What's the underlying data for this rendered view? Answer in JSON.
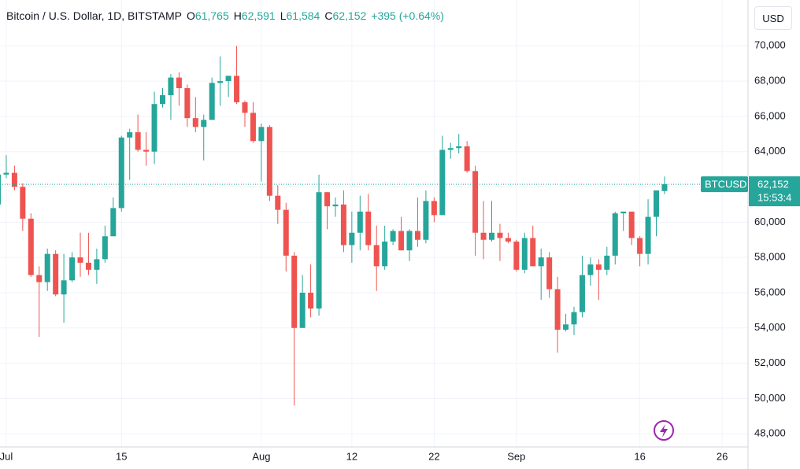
{
  "chart_data": {
    "type": "candlestick",
    "title": "Bitcoin / U.S. Dollar, 1D, BITSTAMP",
    "header": {
      "open_label": "O",
      "open": "61,765",
      "high_label": "H",
      "high": "62,591",
      "low_label": "L",
      "low": "61,584",
      "close_label": "C",
      "close": "62,152",
      "change": "+395 (+0.64%)"
    },
    "currency": "USD",
    "price_tag": {
      "symbol": "BTCUSD",
      "price": "62,152",
      "countdown": "15:53:4"
    },
    "up_color": "#26a69a",
    "down_color": "#ef5350",
    "grid": true,
    "x": [
      "Jun 30",
      "Jul 1",
      "Jul 2",
      "Jul 3",
      "Jul 4",
      "Jul 5",
      "Jul 6",
      "Jul 7",
      "Jul 8",
      "Jul 9",
      "Jul 10",
      "Jul 11",
      "Jul 12",
      "Jul 13",
      "Jul 14",
      "Jul 15",
      "Jul 16",
      "Jul 17",
      "Jul 18",
      "Jul 19",
      "Jul 20",
      "Jul 21",
      "Jul 22",
      "Jul 23",
      "Jul 24",
      "Jul 25",
      "Jul 26",
      "Jul 27",
      "Jul 28",
      "Jul 29",
      "Jul 30",
      "Jul 31",
      "Aug 1",
      "Aug 2",
      "Aug 3",
      "Aug 4",
      "Aug 5",
      "Aug 6",
      "Aug 7",
      "Aug 8",
      "Aug 9",
      "Aug 10",
      "Aug 11",
      "Aug 12",
      "Aug 13",
      "Aug 14",
      "Aug 15",
      "Aug 16",
      "Aug 17",
      "Aug 18",
      "Aug 19",
      "Aug 20",
      "Aug 21",
      "Aug 22",
      "Aug 23",
      "Aug 24",
      "Aug 25",
      "Aug 26",
      "Aug 27",
      "Aug 28",
      "Aug 29",
      "Aug 30",
      "Aug 31",
      "Sep 1",
      "Sep 2",
      "Sep 3",
      "Sep 4",
      "Sep 5",
      "Sep 6",
      "Sep 7",
      "Sep 8",
      "Sep 9",
      "Sep 10",
      "Sep 11",
      "Sep 12",
      "Sep 13",
      "Sep 14",
      "Sep 15",
      "Sep 16",
      "Sep 17",
      "Sep 18",
      "Sep 19"
    ],
    "open": [
      61000,
      62700,
      62800,
      62000,
      60200,
      57000,
      56600,
      58200,
      55900,
      56700,
      58000,
      57700,
      57300,
      57900,
      59200,
      60800,
      64800,
      65100,
      64100,
      64000,
      66700,
      67200,
      68200,
      67600,
      65900,
      65400,
      65800,
      67900,
      68000,
      68300,
      66800,
      66200,
      64600,
      65400,
      61500,
      60700,
      58100,
      54000,
      56000,
      55100,
      61700,
      60900,
      61000,
      58700,
      59400,
      60600,
      58700,
      57500,
      58900,
      59500,
      58400,
      59500,
      59000,
      61200,
      60400,
      64100,
      64200,
      64300,
      62900,
      59400,
      59000,
      59400,
      59100,
      58900,
      57300,
      59100,
      57500,
      58000,
      56200,
      53900,
      54200,
      54900,
      57000,
      57600,
      57300,
      58100,
      60500,
      60600,
      59100,
      58200,
      60300,
      61765
    ],
    "high": [
      62900,
      63800,
      63200,
      62200,
      60500,
      57500,
      58500,
      58400,
      58200,
      58300,
      59400,
      59400,
      58500,
      59800,
      61400,
      64900,
      65300,
      66100,
      65100,
      67400,
      67600,
      68400,
      68500,
      67800,
      67100,
      66100,
      68200,
      69400,
      68300,
      70000,
      66900,
      66800,
      65600,
      65500,
      62100,
      61100,
      58300,
      57000,
      57600,
      62700,
      61700,
      61400,
      61800,
      60600,
      61500,
      61600,
      59800,
      59800,
      59600,
      60300,
      59600,
      61400,
      61800,
      61400,
      64900,
      64500,
      65000,
      64600,
      63200,
      61200,
      61200,
      59900,
      59400,
      59000,
      59400,
      59800,
      58500,
      58300,
      56900,
      54800,
      55200,
      58100,
      58000,
      57900,
      58600,
      60600,
      60600,
      60600,
      59200,
      61300,
      61800,
      62591
    ],
    "low": [
      60700,
      62500,
      61800,
      59500,
      56900,
      53500,
      56100,
      55800,
      54300,
      56600,
      56900,
      57000,
      56500,
      57700,
      59200,
      60600,
      62400,
      64000,
      63200,
      63300,
      66500,
      65800,
      66600,
      65400,
      65100,
      63500,
      65800,
      66600,
      67100,
      66700,
      65400,
      64500,
      62300,
      61200,
      59900,
      57200,
      49600,
      54000,
      54600,
      54700,
      59600,
      60300,
      58300,
      57700,
      58400,
      58400,
      56100,
      57300,
      58700,
      58400,
      57800,
      58600,
      58800,
      60000,
      60400,
      63600,
      63900,
      62800,
      58100,
      57900,
      58900,
      57800,
      58800,
      57200,
      57100,
      57500,
      55600,
      55700,
      52600,
      53800,
      53600,
      54600,
      56400,
      55600,
      57000,
      57600,
      59500,
      58700,
      57500,
      57600,
      59200,
      61584
    ],
    "close": [
      62700,
      62800,
      62000,
      60200,
      57000,
      56600,
      58200,
      55900,
      56700,
      58000,
      57700,
      57300,
      57900,
      59200,
      60800,
      64800,
      65100,
      64100,
      64000,
      66700,
      67200,
      68200,
      67600,
      65900,
      65400,
      65800,
      67900,
      68000,
      68300,
      66800,
      66200,
      64600,
      65400,
      61500,
      60700,
      58100,
      54000,
      56000,
      55100,
      61700,
      60900,
      61000,
      58700,
      59400,
      60600,
      58700,
      57500,
      58900,
      59500,
      58400,
      59500,
      59000,
      61200,
      60400,
      64100,
      64200,
      64300,
      62900,
      59400,
      59000,
      59400,
      59100,
      58900,
      57300,
      59100,
      57500,
      58000,
      56200,
      53900,
      54200,
      54900,
      57000,
      57600,
      57300,
      58100,
      60500,
      60600,
      59100,
      58200,
      60300,
      61800,
      62152
    ],
    "ylim": [
      47250,
      72600
    ],
    "yticks": [
      {
        "value": 48000,
        "label": "48,000"
      },
      {
        "value": 50000,
        "label": "50,000"
      },
      {
        "value": 52000,
        "label": "52,000"
      },
      {
        "value": 54000,
        "label": "54,000"
      },
      {
        "value": 56000,
        "label": "56,000"
      },
      {
        "value": 58000,
        "label": "58,000"
      },
      {
        "value": 60000,
        "label": "60,000"
      },
      {
        "value": 62000,
        "label": "62,000"
      },
      {
        "value": 64000,
        "label": "64,000"
      },
      {
        "value": 66000,
        "label": "66,000"
      },
      {
        "value": 68000,
        "label": "68,000"
      },
      {
        "value": 70000,
        "label": "70,000"
      }
    ],
    "xticks": [
      {
        "value": "Jul 1",
        "label": "Jul"
      },
      {
        "value": "Jul 15",
        "label": "15"
      },
      {
        "value": "Aug 1",
        "label": "Aug"
      },
      {
        "value": "Aug 12",
        "label": "12"
      },
      {
        "value": "Aug 22",
        "label": "22"
      },
      {
        "value": "Sep 1",
        "label": "Sep"
      },
      {
        "value": "Sep 16",
        "label": "16"
      },
      {
        "value": "Sep 26",
        "label": "26"
      }
    ]
  }
}
